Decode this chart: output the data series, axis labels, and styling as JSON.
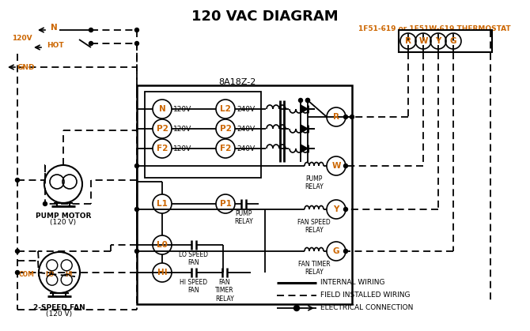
{
  "title": "120 VAC DIAGRAM",
  "title_color": "#000000",
  "title_fontsize": 13,
  "title_fontweight": "bold",
  "background_color": "#ffffff",
  "line_color": "#000000",
  "orange_text_color": "#cc6600",
  "thermostat_label": "1F51-619 or 1F51W-619 THERMOSTAT",
  "control_box_label": "8A18Z-2",
  "pump_motor_label": "PUMP MOTOR",
  "pump_motor_label2": "(120 V)",
  "fan_label": "2-SPEED FAN",
  "fan_label2": "(120 V)",
  "legend_internal": "INTERNAL WIRING",
  "legend_field": "FIELD INSTALLED WIRING",
  "legend_electrical": "ELECTRICAL CONNECTION",
  "terminal_labels": [
    "R",
    "W",
    "Y",
    "G"
  ],
  "circle_labels_left": [
    "N",
    "P2",
    "F2"
  ],
  "circle_labels_right": [
    "L2",
    "P2",
    "F2"
  ],
  "voltages_left": [
    "120V",
    "120V",
    "120V"
  ],
  "voltages_right": [
    "240V",
    "240V",
    "240V"
  ],
  "relay_circles": [
    "R",
    "W",
    "Y",
    "G"
  ],
  "bottom_circles_left": [
    "L1",
    "L0",
    "HI"
  ],
  "bottom_circle_right": "P1"
}
